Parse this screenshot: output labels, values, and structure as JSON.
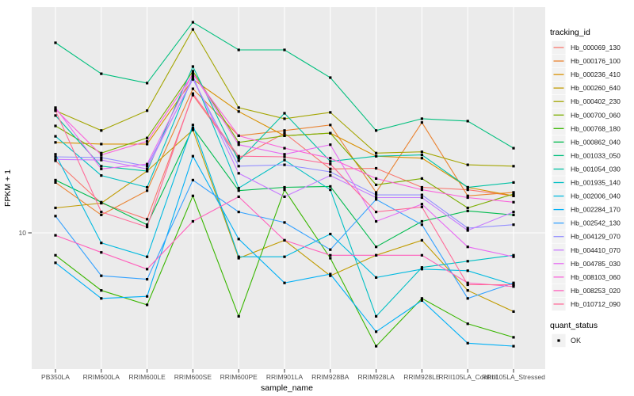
{
  "figure": {
    "kind": "ggplot-line-chart",
    "background": "#FFFFFF"
  },
  "chart_data": {
    "type": "line",
    "title": "",
    "xlabel": "sample_name",
    "ylabel": "FPKM + 1",
    "y_scale": "log10",
    "y_tick_labels": [
      "10"
    ],
    "y_tick_values": [
      10
    ],
    "ylim": [
      3.5,
      62
    ],
    "grid": "major-on",
    "panel_bg": "#EBEBEB",
    "grid_color": "#FFFFFF",
    "tick_label_color": "#4D4D4D",
    "axis_title_color": "#000000",
    "point_color": "#000000",
    "point_shape": "square",
    "categories": [
      "PB350LA",
      "RRIM600LA",
      "RRIM600LE",
      "RRIM600SE",
      "RRIM600PE",
      "RRIM901LA",
      "RRIM928BA",
      "RRIM928LA",
      "RRIM928LE",
      "RRII105LA_Control",
      "RRII105LA_Stressed"
    ],
    "legend": {
      "title": "tracking_id",
      "position": "right"
    },
    "quant_legend": {
      "title": "quant_status",
      "entries": [
        {
          "label": "OK",
          "shape": "square",
          "color": "#000000"
        }
      ]
    },
    "series": [
      {
        "name": "Hb_000069_130",
        "color": "#F8766D",
        "values": [
          18.2,
          12.8,
          11.2,
          31.4,
          18.6,
          22.9,
          17.0,
          17.1,
          14.6,
          14.3,
          13.6
        ]
      },
      {
        "name": "Hb_000176_100",
        "color": "#EA8331",
        "values": [
          15.2,
          11.6,
          14.2,
          33.1,
          22.4,
          23.4,
          24.5,
          14.0,
          25.0,
          13.6,
          14.0
        ]
      },
      {
        "name": "Hb_000236_410",
        "color": "#D89000",
        "values": [
          21.2,
          20.9,
          20.9,
          35.8,
          27.4,
          22.4,
          22.9,
          18.9,
          18.6,
          14.6,
          13.6
        ]
      },
      {
        "name": "Hb_000260_640",
        "color": "#C09B00",
        "values": [
          12.3,
          12.8,
          16.7,
          23.5,
          8.1,
          9.4,
          7.0,
          8.3,
          9.4,
          6.2,
          5.2
        ]
      },
      {
        "name": "Hb_000402_230",
        "color": "#A3A500",
        "values": [
          27.6,
          23.4,
          27.6,
          54.2,
          28.3,
          25.8,
          27.2,
          19.4,
          19.6,
          17.6,
          17.4
        ]
      },
      {
        "name": "Hb_000700_060",
        "color": "#7CAE00",
        "values": [
          24.3,
          19.4,
          22.0,
          38.3,
          21.2,
          22.4,
          22.9,
          14.9,
          15.7,
          12.3,
          13.8
        ]
      },
      {
        "name": "Hb_000768_180",
        "color": "#39B600",
        "values": [
          8.3,
          6.2,
          5.5,
          13.6,
          5.0,
          14.3,
          8.1,
          3.9,
          5.8,
          4.7,
          4.2
        ]
      },
      {
        "name": "Hb_000862_040",
        "color": "#00BB4E",
        "values": [
          15.5,
          12.9,
          10.7,
          23.9,
          14.2,
          14.6,
          14.7,
          8.9,
          11.0,
          12.0,
          11.6
        ]
      },
      {
        "name": "Hb_001033_050",
        "color": "#00BF7D",
        "values": [
          48.5,
          37.5,
          34.7,
          57.5,
          45.7,
          45.7,
          36.3,
          23.4,
          25.8,
          25.3,
          20.2
        ]
      },
      {
        "name": "Hb_001054_030",
        "color": "#00C1A3",
        "values": [
          26.5,
          17.4,
          16.7,
          39.8,
          18.2,
          27.0,
          18.1,
          18.9,
          19.1,
          14.6,
          15.2
        ]
      },
      {
        "name": "Hb_001935_140",
        "color": "#00BFC4",
        "values": [
          22.3,
          16.1,
          14.6,
          36.8,
          14.5,
          18.3,
          14.3,
          5.0,
          7.5,
          7.9,
          8.3
        ]
      },
      {
        "name": "Hb_002006_040",
        "color": "#00BAE0",
        "values": [
          19.2,
          9.2,
          8.2,
          24.5,
          8.2,
          8.2,
          9.9,
          6.9,
          7.4,
          7.3,
          6.5
        ]
      },
      {
        "name": "Hb_002284_170",
        "color": "#00B0F6",
        "values": [
          7.8,
          5.8,
          5.9,
          18.9,
          9.5,
          6.6,
          7.1,
          4.4,
          5.7,
          4.0,
          3.9
        ]
      },
      {
        "name": "Hb_002542_130",
        "color": "#35A2FF",
        "values": [
          11.5,
          7.0,
          6.8,
          15.5,
          11.9,
          10.9,
          8.7,
          13.2,
          10.7,
          5.8,
          6.6
        ]
      },
      {
        "name": "Hb_004129_070",
        "color": "#9590FF",
        "values": [
          18.8,
          18.7,
          17.4,
          35.8,
          17.4,
          17.6,
          16.6,
          13.7,
          13.7,
          10.4,
          10.7
        ]
      },
      {
        "name": "Hb_004410_070",
        "color": "#C77CFF",
        "values": [
          18.4,
          18.3,
          17.0,
          36.3,
          16.4,
          13.5,
          16.1,
          13.4,
          13.4,
          10.2,
          11.9
        ]
      },
      {
        "name": "Hb_004785_030",
        "color": "#E76BF3",
        "values": [
          28.3,
          17.0,
          17.7,
          37.7,
          20.8,
          19.2,
          20.8,
          11.0,
          12.7,
          8.9,
          8.2
        ]
      },
      {
        "name": "Hb_008103_060",
        "color": "#FA62DB",
        "values": [
          27.9,
          19.1,
          21.4,
          37.3,
          22.4,
          20.2,
          18.6,
          15.7,
          14.3,
          13.4,
          12.9
        ]
      },
      {
        "name": "Hb_008253_020",
        "color": "#FF62BC",
        "values": [
          9.8,
          8.5,
          7.4,
          11.0,
          13.5,
          9.4,
          8.3,
          8.3,
          8.3,
          6.6,
          6.4
        ]
      },
      {
        "name": "Hb_010712_090",
        "color": "#FF6A98",
        "values": [
          27.6,
          11.9,
          10.5,
          31.8,
          18.9,
          18.8,
          17.7,
          11.9,
          12.4,
          6.5,
          6.5
        ]
      }
    ]
  }
}
